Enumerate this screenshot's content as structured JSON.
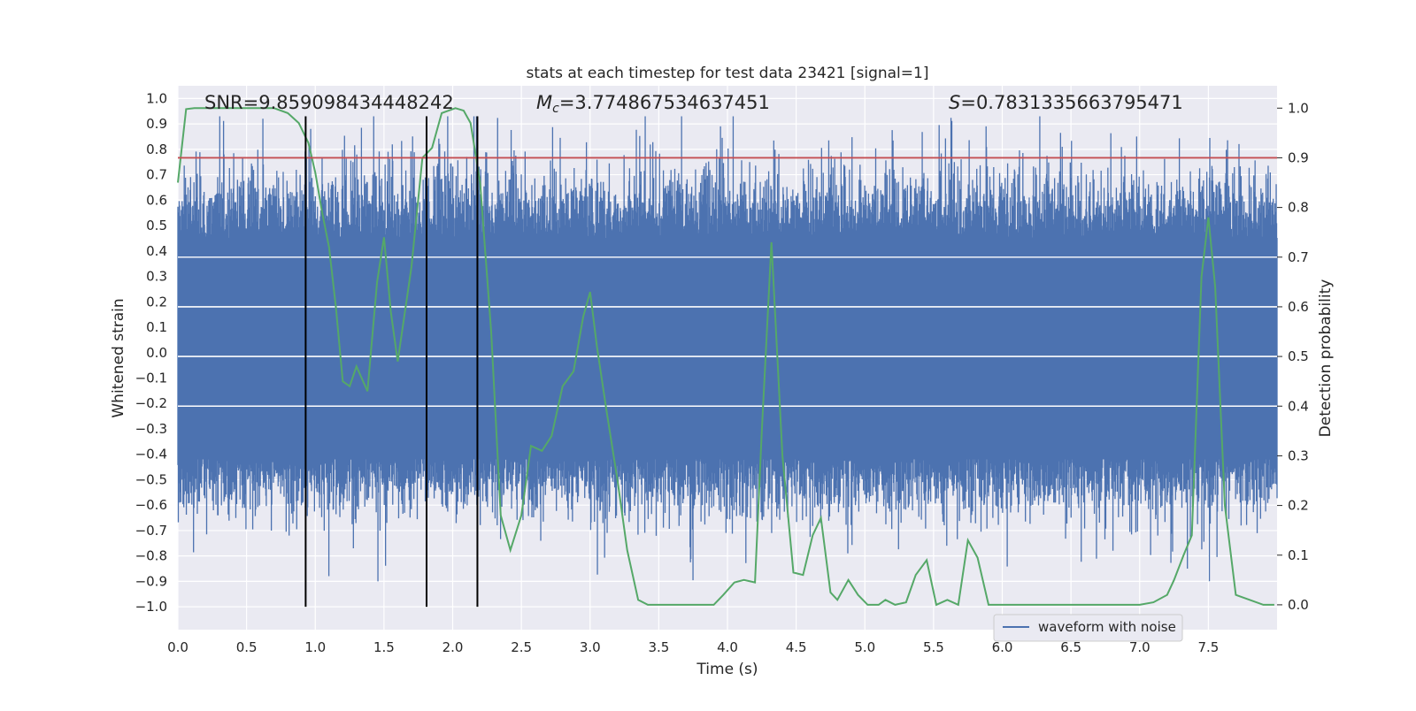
{
  "chart_data": {
    "type": "line",
    "title": "stats at each timestep for test data 23421 [signal=1]",
    "xlabel": "Time (s)",
    "ylabel": "Whitened strain",
    "y2label": "Detection probability",
    "xlim": [
      0.0,
      8.0
    ],
    "ylim": [
      -1.09,
      1.05
    ],
    "y2lim": [
      -0.05,
      1.045
    ],
    "x_ticks": [
      0.0,
      0.5,
      1.0,
      1.5,
      2.0,
      2.5,
      3.0,
      3.5,
      4.0,
      4.5,
      5.0,
      5.5,
      6.0,
      6.5,
      7.0,
      7.5
    ],
    "x_tick_labels": [
      "0.0",
      "0.5",
      "1.0",
      "1.5",
      "2.0",
      "2.5",
      "3.0",
      "3.5",
      "4.0",
      "4.5",
      "5.0",
      "5.5",
      "6.0",
      "6.5",
      "7.0",
      "7.5"
    ],
    "y_ticks": [
      1.0,
      0.9,
      0.8,
      0.7,
      0.6,
      0.5,
      0.4,
      0.3,
      0.2,
      0.1,
      0.0,
      -0.1,
      -0.2,
      -0.3,
      -0.4,
      -0.5,
      -0.6,
      -0.7,
      -0.8,
      -0.9,
      -1.0
    ],
    "y_tick_labels": [
      "1.0",
      "0.9",
      "0.8",
      "0.7",
      "0.6",
      "0.5",
      "0.4",
      "0.3",
      "0.2",
      "0.1",
      "0.0",
      "−0.1",
      "−0.2",
      "−0.3",
      "−0.4",
      "−0.5",
      "−0.6",
      "−0.7",
      "−0.8",
      "−0.9",
      "−1.0"
    ],
    "y2_ticks": [
      1.0,
      0.9,
      0.8,
      0.7,
      0.6,
      0.5,
      0.4,
      0.3,
      0.2,
      0.1,
      0.0
    ],
    "y2_tick_labels": [
      "1.0",
      "0.9",
      "0.8",
      "0.7",
      "0.6",
      "0.5",
      "0.4",
      "0.3",
      "0.2",
      "0.1",
      "0.0"
    ],
    "annotations": {
      "snr": "SNR=9.859098434448242",
      "mc_symbol": "M",
      "mc_sub": "c",
      "mc_value": "=3.774867534637451",
      "s_symbol": "S",
      "s_value": "=0.7831335663795471"
    },
    "legend": {
      "label": "waveform with noise",
      "position": "lower-right"
    },
    "vertical_lines_x": [
      0.93,
      1.81,
      2.18
    ],
    "threshold_probability": 0.9,
    "waveform": {
      "name": "waveform with noise",
      "description_range": [
        -0.9,
        0.93
      ],
      "typical_amplitude": 0.45
    },
    "detection_probability": {
      "name": "detection probability",
      "x": [
        0.0,
        0.06,
        0.12,
        0.2,
        0.3,
        0.4,
        0.5,
        0.6,
        0.7,
        0.8,
        0.88,
        0.95,
        1.0,
        1.05,
        1.1,
        1.15,
        1.2,
        1.25,
        1.3,
        1.38,
        1.45,
        1.5,
        1.55,
        1.6,
        1.7,
        1.78,
        1.85,
        1.92,
        2.02,
        2.08,
        2.13,
        2.2,
        2.28,
        2.35,
        2.42,
        2.5,
        2.57,
        2.65,
        2.72,
        2.8,
        2.88,
        2.95,
        3.0,
        3.05,
        3.12,
        3.2,
        3.27,
        3.35,
        3.42,
        3.5,
        3.6,
        3.7,
        3.8,
        3.9,
        3.97,
        4.05,
        4.12,
        4.2,
        4.25,
        4.32,
        4.4,
        4.48,
        4.55,
        4.62,
        4.68,
        4.75,
        4.8,
        4.88,
        4.95,
        5.02,
        5.1,
        5.15,
        5.22,
        5.3,
        5.37,
        5.45,
        5.52,
        5.6,
        5.68,
        5.75,
        5.82,
        5.9,
        6.0,
        6.2,
        6.4,
        6.6,
        6.8,
        7.0,
        7.1,
        7.2,
        7.25,
        7.32,
        7.38,
        7.45,
        7.5,
        7.55,
        7.62,
        7.7,
        7.8,
        7.9,
        7.98
      ],
      "y": [
        0.85,
        0.998,
        1.0,
        1.0,
        1.0,
        1.0,
        1.0,
        1.0,
        1.0,
        0.99,
        0.97,
        0.93,
        0.87,
        0.79,
        0.72,
        0.6,
        0.45,
        0.44,
        0.48,
        0.43,
        0.65,
        0.74,
        0.59,
        0.49,
        0.68,
        0.9,
        0.92,
        0.99,
        1.0,
        0.995,
        0.97,
        0.85,
        0.55,
        0.18,
        0.11,
        0.18,
        0.32,
        0.31,
        0.34,
        0.44,
        0.47,
        0.58,
        0.63,
        0.52,
        0.39,
        0.25,
        0.11,
        0.01,
        0.0,
        0.0,
        0.0,
        0.0,
        0.0,
        0.0,
        0.02,
        0.045,
        0.05,
        0.045,
        0.35,
        0.73,
        0.3,
        0.065,
        0.06,
        0.14,
        0.175,
        0.025,
        0.01,
        0.05,
        0.02,
        0.0,
        0.0,
        0.01,
        0.0,
        0.005,
        0.06,
        0.09,
        0.0,
        0.01,
        0.0,
        0.13,
        0.095,
        0.0,
        0.0,
        0.0,
        0.0,
        0.0,
        0.0,
        0.0,
        0.005,
        0.02,
        0.05,
        0.1,
        0.14,
        0.66,
        0.78,
        0.64,
        0.2,
        0.02,
        0.01,
        0.0,
        0.0
      ]
    },
    "colors": {
      "waveform": "#4c72b0",
      "probability": "#55a868",
      "threshold": "#c44e52",
      "vlines": "#000000",
      "background": "#eaeaf2",
      "grid": "#ffffff",
      "text": "#262626"
    }
  }
}
